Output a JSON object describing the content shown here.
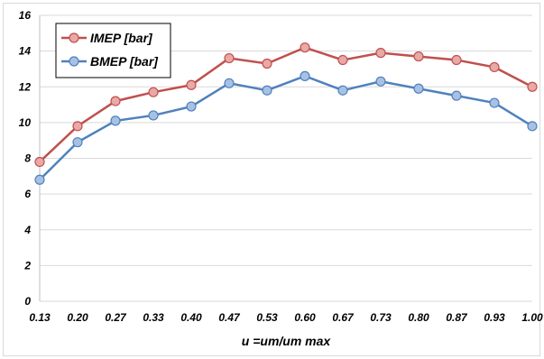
{
  "chart_data": {
    "type": "line",
    "categories": [
      "0.13",
      "0.20",
      "0.27",
      "0.33",
      "0.40",
      "0.47",
      "0.53",
      "0.60",
      "0.67",
      "0.73",
      "0.80",
      "0.87",
      "0.93",
      "1.00"
    ],
    "series": [
      {
        "name": "IMEP [bar]",
        "color": "#c0504d",
        "marker_fill": "#e8a9a7",
        "values": [
          7.8,
          9.8,
          11.2,
          11.7,
          12.1,
          13.6,
          13.3,
          14.2,
          13.5,
          13.9,
          13.7,
          13.5,
          13.1,
          12.0
        ]
      },
      {
        "name": "BMEP [bar]",
        "color": "#4f81bd",
        "marker_fill": "#a7c1e4",
        "values": [
          6.8,
          8.9,
          10.1,
          10.4,
          10.9,
          12.2,
          11.8,
          12.6,
          11.8,
          12.3,
          11.9,
          11.5,
          11.1,
          9.8
        ]
      }
    ],
    "y_ticks": [
      "0",
      "2",
      "4",
      "6",
      "8",
      "10",
      "12",
      "14",
      "16"
    ],
    "ylim": [
      0,
      16
    ],
    "xlabel": "u =um/um max",
    "ylabel": "",
    "title": "",
    "grid": "horizontal",
    "legend": "top-left",
    "gridline_color": "#d9d9d9"
  }
}
